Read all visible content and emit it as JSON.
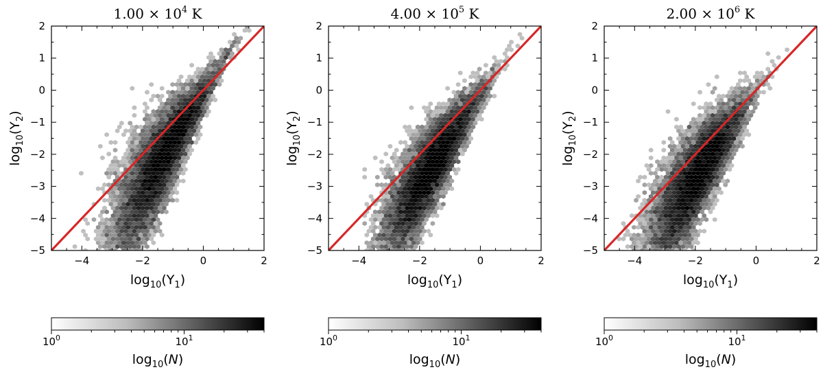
{
  "chart_data": [
    {
      "type": "heatmap",
      "subtype": "hexbin",
      "title_mantissa": "1.00",
      "title_exponent": "4",
      "title_unit": "K",
      "xlabel": "log10(Y1)",
      "ylabel": "log10(Y2)",
      "xlim": [
        -5,
        2
      ],
      "ylim": [
        -5,
        2
      ],
      "xticks": [
        -4,
        -2,
        0,
        2
      ],
      "yticks": [
        -5,
        -4,
        -3,
        -2,
        -1,
        0,
        1,
        2
      ],
      "reference_line": {
        "x": [
          -5,
          2
        ],
        "y": [
          -5,
          2
        ],
        "color": "#d62728"
      },
      "density_core": {
        "x": -1.1,
        "y": -1.2
      },
      "distribution": {
        "x_center": -1.4,
        "x_spread": 0.85,
        "offset_at_zero": -0.1,
        "offset_slope": 0.5,
        "offset_spread_base": 0.35,
        "offset_spread_slope": -0.25
      },
      "colorbar": {
        "label": "log10(N)",
        "ticks": [
          "10^0",
          "10^1"
        ],
        "range": [
          1,
          40
        ],
        "scale": "log"
      }
    },
    {
      "type": "heatmap",
      "subtype": "hexbin",
      "title_mantissa": "4.00",
      "title_exponent": "5",
      "title_unit": "K",
      "xlabel": "log10(Y1)",
      "ylabel": "log10(Y2)",
      "xlim": [
        -5,
        2
      ],
      "ylim": [
        -5,
        2
      ],
      "xticks": [
        -4,
        -2,
        0,
        2
      ],
      "yticks": [
        -5,
        -4,
        -3,
        -2,
        -1,
        0,
        1,
        2
      ],
      "reference_line": {
        "x": [
          -5,
          2
        ],
        "y": [
          -5,
          2
        ],
        "color": "#d62728"
      },
      "density_core": {
        "x": -1.3,
        "y": -1.5
      },
      "distribution": {
        "x_center": -1.7,
        "x_spread": 0.8,
        "offset_at_zero": -0.15,
        "offset_slope": 0.4,
        "offset_spread_base": 0.3,
        "offset_spread_slope": -0.2
      },
      "colorbar": {
        "label": "log10(N)",
        "ticks": [
          "10^0",
          "10^1"
        ],
        "range": [
          1,
          40
        ],
        "scale": "log"
      }
    },
    {
      "type": "heatmap",
      "subtype": "hexbin",
      "title_mantissa": "2.00",
      "title_exponent": "6",
      "title_unit": "K",
      "xlabel": "log10(Y1)",
      "ylabel": "log10(Y2)",
      "xlim": [
        -5,
        2
      ],
      "ylim": [
        -5,
        2
      ],
      "xticks": [
        -4,
        -2,
        0,
        2
      ],
      "yticks": [
        -5,
        -4,
        -3,
        -2,
        -1,
        0,
        1,
        2
      ],
      "reference_line": {
        "x": [
          -5,
          2
        ],
        "y": [
          -5,
          2
        ],
        "color": "#d62728"
      },
      "density_core": {
        "x": -1.6,
        "y": -1.7
      },
      "distribution": {
        "x_center": -2.0,
        "x_spread": 0.8,
        "offset_at_zero": -0.05,
        "offset_slope": 0.35,
        "offset_spread_base": 0.3,
        "offset_spread_slope": -0.2
      },
      "colorbar": {
        "label": "log10(N)",
        "ticks": [
          "10^0",
          "10^1"
        ],
        "range": [
          1,
          40
        ],
        "scale": "log"
      }
    }
  ]
}
